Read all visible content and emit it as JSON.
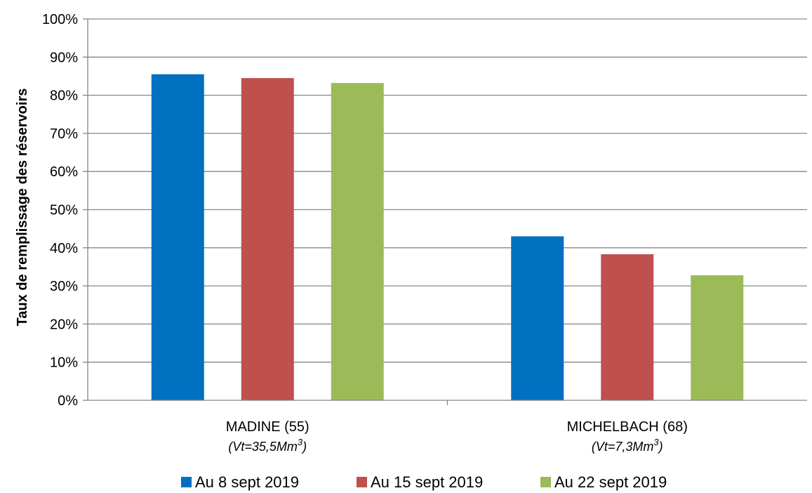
{
  "chart_data": {
    "type": "bar",
    "title": "",
    "xlabel": "",
    "ylabel": "Taux de remplissage des réservoirs",
    "ylim": [
      0,
      1
    ],
    "yticks": [
      "0%",
      "10%",
      "20%",
      "30%",
      "40%",
      "50%",
      "60%",
      "70%",
      "80%",
      "90%",
      "100%"
    ],
    "grid": true,
    "legend_position": "bottom",
    "categories": [
      {
        "name": "MADINE (55)",
        "sub": "(Vt=35,5Mm",
        "sup": "3",
        "close": ")"
      },
      {
        "name": "MICHELBACH (68)",
        "sub": "(Vt=7,3Mm",
        "sup": "3",
        "close": ")"
      }
    ],
    "series": [
      {
        "name": "Au 8 sept 2019",
        "color": "#0070C0",
        "values": [
          0.855,
          0.43
        ]
      },
      {
        "name": "Au 15 sept 2019",
        "color": "#C0504D",
        "values": [
          0.845,
          0.383
        ]
      },
      {
        "name": "Au 22 sept 2019",
        "color": "#9BBB59",
        "values": [
          0.832,
          0.328
        ]
      }
    ]
  }
}
